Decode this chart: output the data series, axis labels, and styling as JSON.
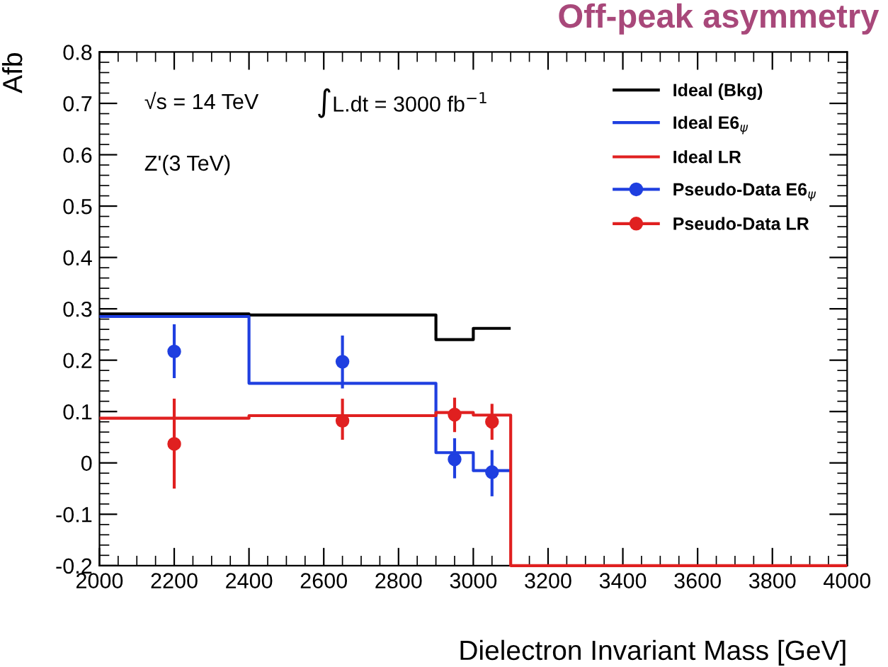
{
  "chart_data": {
    "type": "histogram",
    "title": "Off-peak asymmetry",
    "xlabel": "Dielectron Invariant Mass [GeV]",
    "ylabel": "Afb",
    "xlim": [
      2000,
      4000
    ],
    "xticks": [
      2000,
      2200,
      2400,
      2600,
      2800,
      3000,
      3200,
      3400,
      3600,
      3800,
      4000
    ],
    "ylim": [
      -0.2,
      0.8
    ],
    "yticks": [
      -0.2,
      -0.1,
      0,
      0.1,
      0.2,
      0.3,
      0.4,
      0.5,
      0.6,
      0.7,
      0.8
    ],
    "grid": false,
    "legend": "top right",
    "bins": [
      2000,
      2400,
      2900,
      3000,
      3100,
      4000
    ],
    "annotations": [
      "√s = 14 TeV",
      "∫L.dt = 3000 fb$^{−1}$",
      "Z'(3 TeV)"
    ],
    "series": [
      {
        "name": "Ideal (Bkg)",
        "color": "#000000",
        "bins": [
          2000,
          2400,
          2900,
          3000,
          3100
        ],
        "values": [
          0.29,
          0.288,
          0.24,
          0.262
        ]
      },
      {
        "name": "Ideal E6$_{ψ}$",
        "color": "#1f3fe0",
        "bins": [
          2000,
          2400,
          2900,
          3000,
          3100
        ],
        "values": [
          0.285,
          0.155,
          0.02,
          -0.015
        ]
      },
      {
        "name": "Ideal LR",
        "color": "#e02020",
        "values": [
          0.087,
          0.092,
          0.098,
          0.093,
          -0.2
        ]
      },
      {
        "name": "Pseudo-Data E6$_{ψ}$",
        "type": "scatter",
        "color": "#1f3fe0",
        "x": [
          2200,
          2650,
          2950,
          3050
        ],
        "values": [
          0.217,
          0.197,
          0.007,
          -0.018
        ],
        "errors": [
          [
            0.165,
            0.27
          ],
          [
            0.145,
            0.248
          ],
          [
            -0.03,
            0.048
          ],
          [
            -0.065,
            0.025
          ]
        ],
        "marker": "circle"
      },
      {
        "name": "Pseudo-Data LR",
        "type": "scatter",
        "color": "#e02020",
        "x": [
          2200,
          2650,
          2950,
          3050
        ],
        "values": [
          0.037,
          0.082,
          0.094,
          0.08
        ],
        "errors": [
          [
            -0.05,
            0.125
          ],
          [
            0.045,
            0.125
          ],
          [
            0.06,
            0.127
          ],
          [
            0.045,
            0.115
          ]
        ],
        "marker": "circle"
      }
    ]
  }
}
